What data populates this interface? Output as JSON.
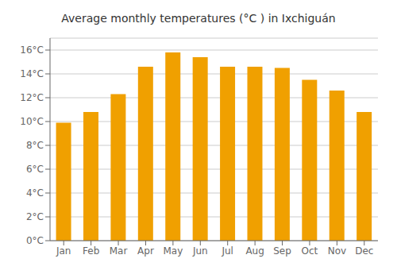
{
  "chart_data": {
    "type": "bar",
    "title": "Average monthly temperatures (°C ) in Ixchiguán",
    "categories": [
      "Jan",
      "Feb",
      "Mar",
      "Apr",
      "May",
      "Jun",
      "Jul",
      "Aug",
      "Sep",
      "Oct",
      "Nov",
      "Dec"
    ],
    "values": [
      9.9,
      10.8,
      12.3,
      14.6,
      15.8,
      15.4,
      14.6,
      14.6,
      14.5,
      13.5,
      12.6,
      10.8
    ],
    "color": "#F0A000",
    "ylim": [
      0,
      17
    ],
    "yticks": [
      {
        "value": 0,
        "label": "0°C"
      },
      {
        "value": 2,
        "label": "2°C"
      },
      {
        "value": 4,
        "label": "4°C"
      },
      {
        "value": 6,
        "label": "6°C"
      },
      {
        "value": 8,
        "label": "8°C"
      },
      {
        "value": 10,
        "label": "10°C"
      },
      {
        "value": 12,
        "label": "12°C"
      },
      {
        "value": 14,
        "label": "14°C"
      },
      {
        "value": 16,
        "label": "16°C"
      }
    ],
    "grid": true
  }
}
